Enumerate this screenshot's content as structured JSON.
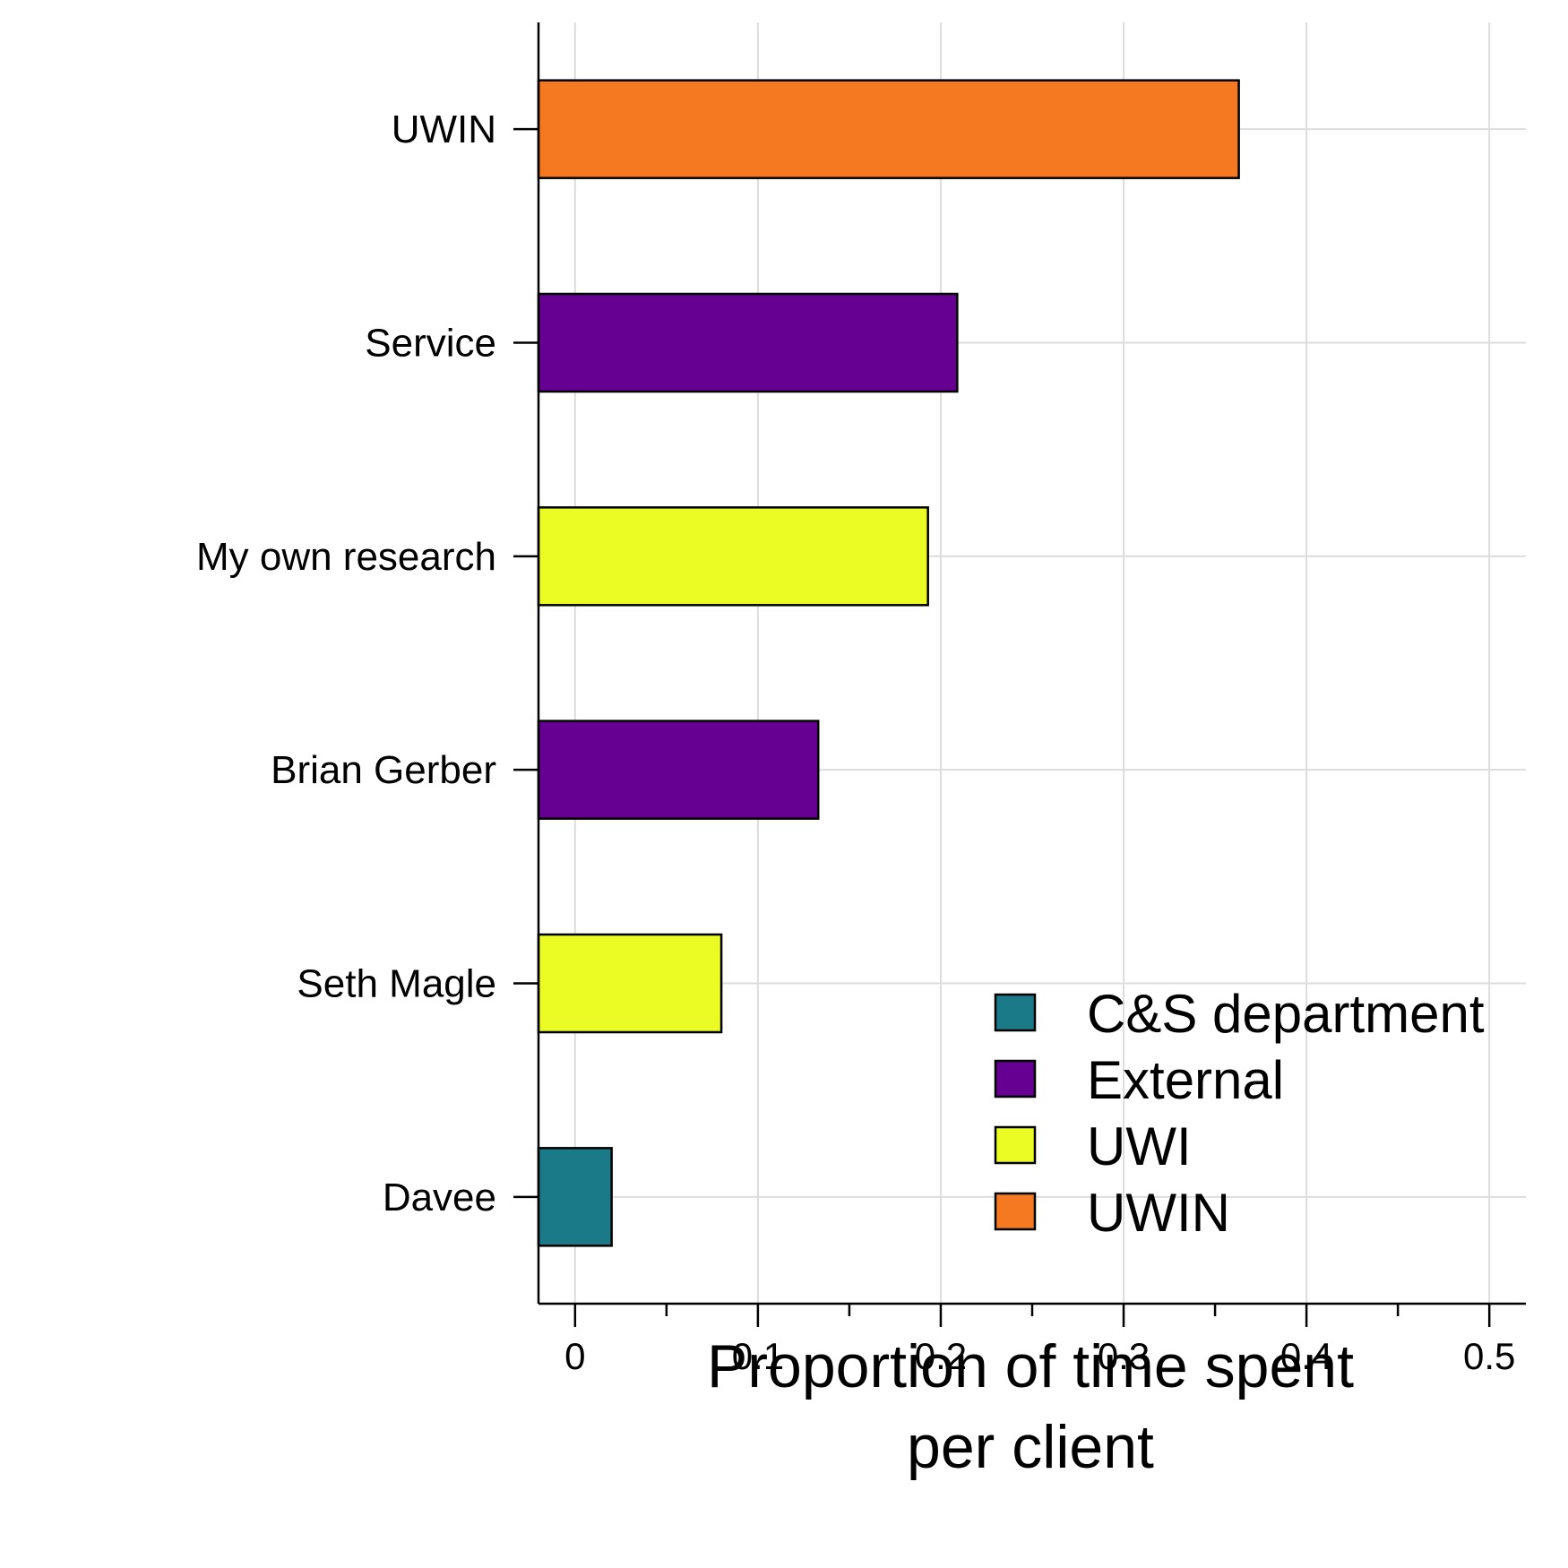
{
  "chart_data": {
    "type": "bar",
    "orientation": "horizontal",
    "categories": [
      "UWIN",
      "Service",
      "My own research",
      "Brian Gerber",
      "Seth Magle",
      "Davee"
    ],
    "values": [
      0.363,
      0.209,
      0.193,
      0.133,
      0.08,
      0.02
    ],
    "groups": [
      "UWIN",
      "External",
      "UWI",
      "External",
      "UWI",
      "C&S department"
    ],
    "xlabel_lines": [
      "Proportion of time spent",
      "per client"
    ],
    "ylabel": "",
    "xlim": [
      -0.02,
      0.52
    ],
    "xticks": [
      0,
      0.1,
      0.2,
      0.3,
      0.4,
      0.5
    ],
    "xtick_labels": [
      "0",
      "0.1",
      "0.2",
      "0.3",
      "0.4",
      "0.5"
    ],
    "grid": true,
    "legend": {
      "position": "bottom-right",
      "entries": [
        {
          "label": "C&S department",
          "color": "#1b7a87"
        },
        {
          "label": "External",
          "color": "#660092"
        },
        {
          "label": "UWI",
          "color": "#ebfb24"
        },
        {
          "label": "UWIN",
          "color": "#f47920"
        }
      ]
    }
  }
}
